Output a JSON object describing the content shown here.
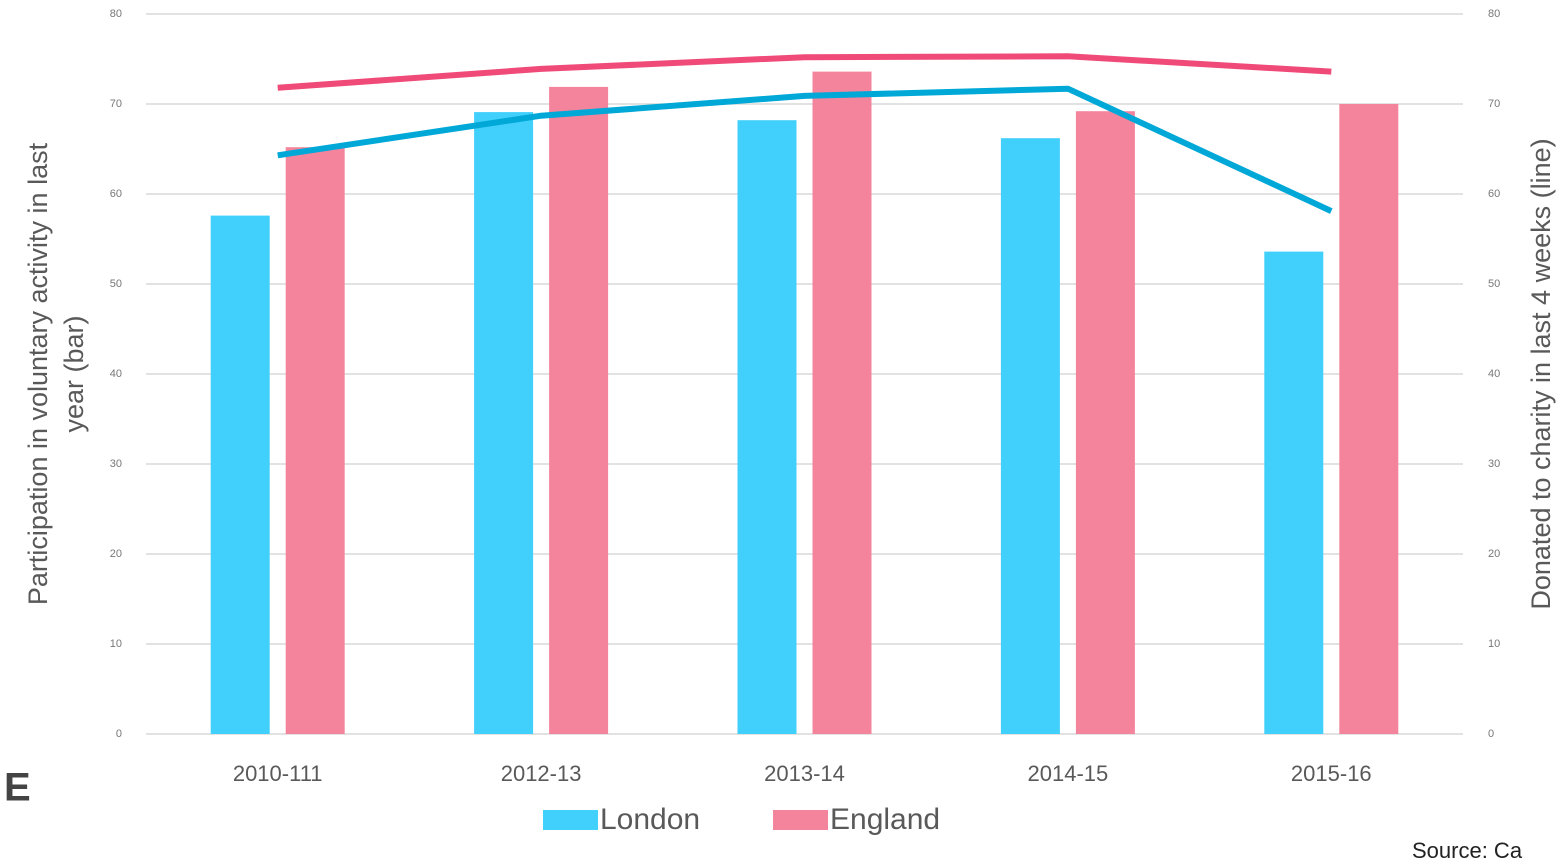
{
  "chart_data": {
    "type": "bar_line",
    "categories": [
      "2010-111",
      "2012-13",
      "2013-14",
      "2014-15",
      "2015-16"
    ],
    "y_label_lines": [
      "Participation in voluntary activity in last",
      "year (bar)"
    ],
    "y2_label": "Donated to charity in last 4 weeks (line)",
    "series": [
      {
        "name": "London",
        "color": "#41cffc",
        "kind": "bar",
        "values": [
          57.6,
          69.1,
          68.2,
          66.2,
          53.6
        ]
      },
      {
        "name": "England",
        "color": "#f4849c",
        "kind": "bar",
        "values": [
          65.2,
          71.9,
          73.6,
          69.2,
          70.0
        ]
      },
      {
        "name": "London",
        "color": "#00a8d8",
        "kind": "line",
        "axis": "y2",
        "values": [
          64.3,
          68.7,
          70.9,
          71.7,
          58.1
        ]
      },
      {
        "name": "England",
        "color": "#f04a78",
        "kind": "line",
        "axis": "y2",
        "values": [
          71.8,
          73.9,
          75.2,
          75.3,
          73.6
        ]
      }
    ],
    "ylim": [
      0,
      80
    ],
    "yticks": [
      0,
      10,
      20,
      30,
      40,
      50,
      60,
      70,
      80
    ],
    "y2lim": [
      0,
      80
    ],
    "y2ticks": [
      0,
      10,
      20,
      30,
      40,
      50,
      60,
      70,
      80
    ],
    "grid": true,
    "side_letter": "E",
    "source": "Source: Ca"
  }
}
